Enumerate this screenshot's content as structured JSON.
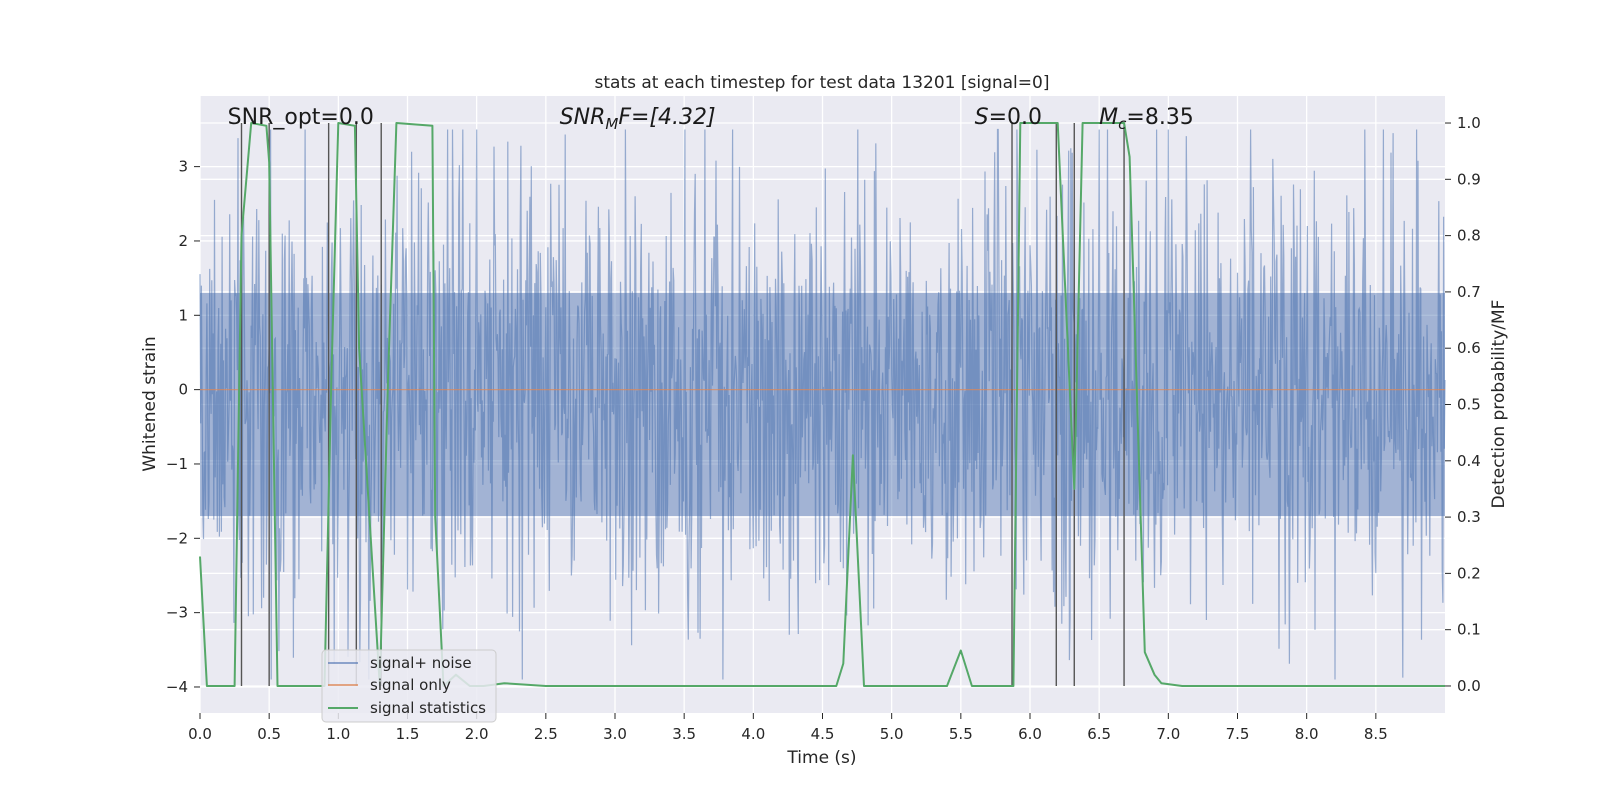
{
  "chart_data": {
    "type": "line",
    "title": "stats at each timestep for test data 13201 [signal=0]",
    "xlabel": "Time (s)",
    "ylabel": "Whitened strain",
    "y2label": "Detection probability/MF",
    "xlim": [
      0,
      9.0
    ],
    "ylim": [
      -4.35,
      3.95
    ],
    "y2lim": [
      -0.048,
      1.048
    ],
    "xticks": [
      "0.0",
      "0.5",
      "1.0",
      "1.5",
      "2.0",
      "2.5",
      "3.0",
      "3.5",
      "4.0",
      "4.5",
      "5.0",
      "5.5",
      "6.0",
      "6.5",
      "7.0",
      "7.5",
      "8.0",
      "8.5"
    ],
    "yticks": [
      "3",
      "2",
      "1",
      "0",
      "−1",
      "−2",
      "−3",
      "−4"
    ],
    "y2ticks": [
      "1.0",
      "0.9",
      "0.8",
      "0.7",
      "0.6",
      "0.5",
      "0.4",
      "0.3",
      "0.2",
      "0.1",
      "0.0"
    ],
    "grid": true,
    "legend_position": "lower-left",
    "annotations": [
      {
        "text": "SNR_opt=0.0",
        "x": 0.2
      },
      {
        "text": "SNR",
        "sub": "M",
        "suffix": "F=[4.32]",
        "italic": true,
        "x": 2.6
      },
      {
        "text": "S",
        "suffix": "=0.0",
        "italic": true,
        "x": 5.6
      },
      {
        "text": "M",
        "sub": "c",
        "suffix": "=8.35",
        "italic": true,
        "x": 6.5
      }
    ],
    "series": [
      {
        "name": "signal+ noise",
        "color": "#4c72b0",
        "axis": "left",
        "kind": "noise",
        "amplitude": 1.6,
        "duration": 9.0
      },
      {
        "name": "signal only",
        "color": "#dd8452",
        "axis": "left",
        "x": [
          0,
          9.0
        ],
        "y": [
          0,
          0
        ]
      },
      {
        "name": "signal statistics",
        "color": "#55a868",
        "axis": "right",
        "x": [
          0.0,
          0.05,
          0.25,
          0.3,
          0.37,
          0.48,
          0.5,
          0.56,
          0.9,
          0.95,
          1.0,
          1.12,
          1.15,
          1.3,
          1.36,
          1.42,
          1.68,
          1.7,
          1.76,
          1.85,
          1.95,
          2.05,
          2.2,
          2.5,
          4.6,
          4.65,
          4.72,
          4.8,
          5.4,
          5.5,
          5.58,
          5.88,
          5.93,
          6.2,
          6.32,
          6.38,
          6.68,
          6.72,
          6.83,
          6.9,
          6.95,
          7.1,
          8.8,
          9.0
        ],
        "y": [
          0.23,
          0.0,
          0.0,
          0.8,
          1.0,
          0.995,
          0.93,
          0.0,
          0.0,
          0.55,
          1.0,
          0.995,
          0.6,
          0.0,
          0.55,
          1.0,
          0.995,
          0.3,
          0.0,
          0.02,
          0.0,
          0.0,
          0.005,
          0.0,
          0.0,
          0.04,
          0.41,
          0.0,
          0.0,
          0.063,
          0.0,
          0.0,
          1.0,
          1.0,
          0.35,
          1.0,
          1.0,
          0.94,
          0.06,
          0.02,
          0.005,
          0.0,
          0.0,
          0.0
        ]
      }
    ],
    "event_lines": [
      0.3,
      0.5,
      0.93,
      1.13,
      1.31,
      5.87,
      6.19,
      6.32,
      6.68
    ]
  }
}
